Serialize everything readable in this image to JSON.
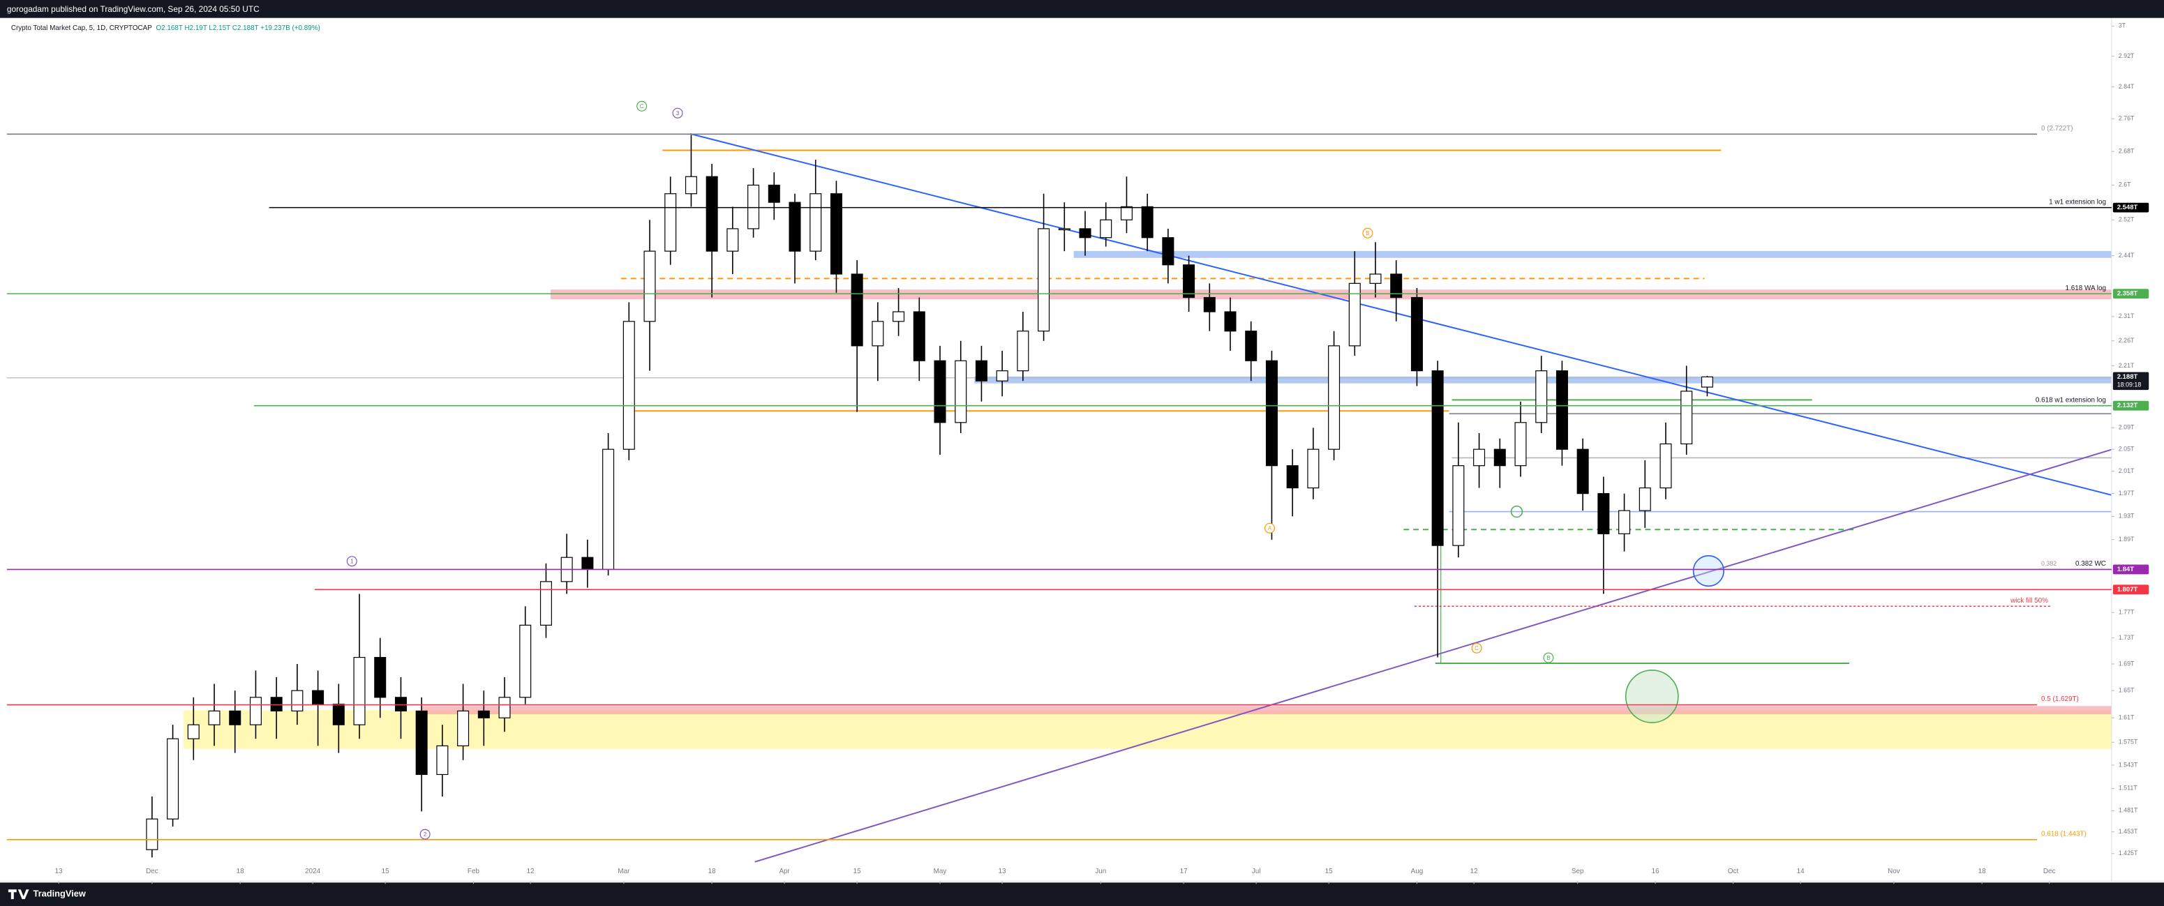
{
  "header": {
    "publisher": "gorogadam published on TradingView.com, Sep 26, 2024 05:50 UTC"
  },
  "footer": {
    "brand": "TradingView"
  },
  "chart_data": {
    "type": "candlestick",
    "title": "Crypto Total Market Cap, 5, 1D, CRYPTOCAP",
    "ohlc_legend": "O2.168T H2.19T L2.15T C2.188T +19.237B (+0.89%)",
    "log_scale": true,
    "up_color": "#ffffff",
    "down_color": "#000000",
    "wick_color": "#000000",
    "x": [
      "2023-12-01",
      "2023-12-05",
      "2023-12-09",
      "2023-12-13",
      "2023-12-17",
      "2023-12-21",
      "2023-12-25",
      "2023-12-29",
      "2024-01-02",
      "2024-01-06",
      "2024-01-10",
      "2024-01-14",
      "2024-01-18",
      "2024-01-22",
      "2024-01-26",
      "2024-01-30",
      "2024-02-03",
      "2024-02-07",
      "2024-02-11",
      "2024-02-15",
      "2024-02-19",
      "2024-02-23",
      "2024-02-27",
      "2024-03-02",
      "2024-03-06",
      "2024-03-10",
      "2024-03-14",
      "2024-03-18",
      "2024-03-22",
      "2024-03-26",
      "2024-03-30",
      "2024-04-03",
      "2024-04-07",
      "2024-04-11",
      "2024-04-15",
      "2024-04-19",
      "2024-04-23",
      "2024-04-27",
      "2024-05-01",
      "2024-05-05",
      "2024-05-09",
      "2024-05-13",
      "2024-05-17",
      "2024-05-21",
      "2024-05-25",
      "2024-05-29",
      "2024-06-02",
      "2024-06-06",
      "2024-06-10",
      "2024-06-14",
      "2024-06-18",
      "2024-06-22",
      "2024-06-26",
      "2024-06-30",
      "2024-07-04",
      "2024-07-08",
      "2024-07-12",
      "2024-07-16",
      "2024-07-20",
      "2024-07-24",
      "2024-07-28",
      "2024-08-01",
      "2024-08-05",
      "2024-08-09",
      "2024-08-13",
      "2024-08-17",
      "2024-08-21",
      "2024-08-25",
      "2024-08-29",
      "2024-09-02",
      "2024-09-06",
      "2024-09-10",
      "2024-09-14",
      "2024-09-18",
      "2024-09-22",
      "2024-09-26"
    ],
    "open": [
      1.43,
      1.47,
      1.58,
      1.6,
      1.62,
      1.6,
      1.64,
      1.62,
      1.65,
      1.63,
      1.6,
      1.7,
      1.64,
      1.62,
      1.53,
      1.57,
      1.62,
      1.61,
      1.64,
      1.75,
      1.82,
      1.86,
      1.84,
      2.05,
      2.3,
      2.45,
      2.58,
      2.62,
      2.45,
      2.5,
      2.6,
      2.56,
      2.45,
      2.58,
      2.4,
      2.25,
      2.3,
      2.32,
      2.22,
      2.1,
      2.22,
      2.18,
      2.2,
      2.28,
      2.5,
      2.5,
      2.48,
      2.52,
      2.55,
      2.48,
      2.42,
      2.35,
      2.32,
      2.28,
      2.22,
      2.02,
      1.98,
      2.05,
      2.25,
      2.38,
      2.4,
      2.35,
      2.2,
      1.88,
      2.02,
      2.05,
      2.02,
      2.1,
      2.2,
      2.05,
      1.97,
      1.9,
      1.94,
      1.98,
      2.06,
      2.168
    ],
    "high": [
      1.5,
      1.6,
      1.64,
      1.66,
      1.65,
      1.68,
      1.67,
      1.69,
      1.68,
      1.66,
      1.8,
      1.73,
      1.67,
      1.64,
      1.6,
      1.66,
      1.65,
      1.67,
      1.78,
      1.85,
      1.9,
      1.89,
      2.08,
      2.34,
      2.52,
      2.62,
      2.72,
      2.65,
      2.55,
      2.64,
      2.63,
      2.58,
      2.66,
      2.61,
      2.43,
      2.34,
      2.37,
      2.35,
      2.25,
      2.26,
      2.25,
      2.24,
      2.32,
      2.58,
      2.56,
      2.54,
      2.56,
      2.62,
      2.58,
      2.5,
      2.44,
      2.38,
      2.35,
      2.3,
      2.24,
      2.05,
      2.09,
      2.28,
      2.45,
      2.47,
      2.43,
      2.37,
      2.22,
      2.1,
      2.08,
      2.07,
      2.14,
      2.23,
      2.22,
      2.07,
      2.0,
      1.97,
      2.03,
      2.1,
      2.21,
      2.19
    ],
    "low": [
      1.42,
      1.46,
      1.55,
      1.57,
      1.56,
      1.58,
      1.58,
      1.6,
      1.57,
      1.56,
      1.58,
      1.61,
      1.58,
      1.48,
      1.5,
      1.55,
      1.57,
      1.59,
      1.63,
      1.73,
      1.8,
      1.81,
      1.83,
      2.03,
      2.2,
      2.42,
      2.55,
      2.35,
      2.4,
      2.48,
      2.52,
      2.38,
      2.43,
      2.36,
      2.12,
      2.18,
      2.27,
      2.18,
      2.04,
      2.08,
      2.14,
      2.15,
      2.18,
      2.26,
      2.45,
      2.44,
      2.46,
      2.49,
      2.45,
      2.38,
      2.32,
      2.28,
      2.24,
      2.18,
      1.89,
      1.93,
      1.96,
      2.03,
      2.23,
      2.35,
      2.3,
      2.17,
      1.7,
      1.86,
      1.98,
      1.98,
      2.0,
      2.08,
      2.02,
      1.94,
      1.8,
      1.87,
      1.91,
      1.96,
      2.04,
      2.15
    ],
    "close": [
      1.47,
      1.58,
      1.6,
      1.62,
      1.6,
      1.64,
      1.62,
      1.65,
      1.63,
      1.6,
      1.7,
      1.64,
      1.62,
      1.53,
      1.57,
      1.62,
      1.61,
      1.64,
      1.75,
      1.82,
      1.86,
      1.84,
      2.05,
      2.3,
      2.45,
      2.58,
      2.62,
      2.45,
      2.5,
      2.6,
      2.56,
      2.45,
      2.58,
      2.4,
      2.25,
      2.3,
      2.32,
      2.22,
      2.1,
      2.22,
      2.18,
      2.2,
      2.28,
      2.5,
      2.5,
      2.48,
      2.52,
      2.55,
      2.48,
      2.42,
      2.35,
      2.32,
      2.28,
      2.22,
      2.02,
      1.98,
      2.05,
      2.25,
      2.38,
      2.4,
      2.35,
      2.2,
      1.88,
      2.02,
      2.05,
      2.02,
      2.1,
      2.2,
      2.05,
      1.97,
      1.9,
      1.94,
      1.98,
      2.06,
      2.16,
      2.188
    ],
    "last_value_label": "2.188T",
    "countdown": "18:09:18",
    "xlim": [
      "2023-11-03",
      "2024-12-13"
    ],
    "ylim": [
      1.39,
      3.022
    ],
    "yticks": [
      {
        "value": 3,
        "label": "3T"
      },
      {
        "value": 2.92,
        "label": "2.92T"
      },
      {
        "value": 2.84,
        "label": "2.84T"
      },
      {
        "value": 2.76,
        "label": "2.76T"
      },
      {
        "value": 2.68,
        "label": "2.68T"
      },
      {
        "value": 2.6,
        "label": "2.6T"
      },
      {
        "value": 2.52,
        "label": "2.52T"
      },
      {
        "value": 2.44,
        "label": "2.44T"
      },
      {
        "value": 2.31,
        "label": "2.31T"
      },
      {
        "value": 2.26,
        "label": "2.26T"
      },
      {
        "value": 2.21,
        "label": "2.21T"
      },
      {
        "value": 2.09,
        "label": "2.09T"
      },
      {
        "value": 2.05,
        "label": "2.05T"
      },
      {
        "value": 2.01,
        "label": "2.01T"
      },
      {
        "value": 1.97,
        "label": "1.97T"
      },
      {
        "value": 1.93,
        "label": "1.93T"
      },
      {
        "value": 1.89,
        "label": "1.89T"
      },
      {
        "value": 1.77,
        "label": "1.77T"
      },
      {
        "value": 1.73,
        "label": "1.73T"
      },
      {
        "value": 1.69,
        "label": "1.69T"
      },
      {
        "value": 1.65,
        "label": "1.65T"
      },
      {
        "value": 1.61,
        "label": "1.61T"
      },
      {
        "value": 1.575,
        "label": "1.575T"
      },
      {
        "value": 1.543,
        "label": "1.543T"
      },
      {
        "value": 1.511,
        "label": "1.511T"
      },
      {
        "value": 1.481,
        "label": "1.481T"
      },
      {
        "value": 1.453,
        "label": "1.453T"
      },
      {
        "value": 1.425,
        "label": "1.425T"
      }
    ],
    "xticks": [
      {
        "value": "2023-11-13",
        "label": "13"
      },
      {
        "value": "2023-12-01",
        "label": "Dec"
      },
      {
        "value": "2023-12-18",
        "label": "18"
      },
      {
        "value": "2024-01-01",
        "label": "2024"
      },
      {
        "value": "2024-01-15",
        "label": "15"
      },
      {
        "value": "2024-02-01",
        "label": "Feb"
      },
      {
        "value": "2024-02-12",
        "label": "12"
      },
      {
        "value": "2024-03-01",
        "label": "Mar"
      },
      {
        "value": "2024-03-18",
        "label": "18"
      },
      {
        "value": "2024-04-01",
        "label": "Apr"
      },
      {
        "value": "2024-04-15",
        "label": "15"
      },
      {
        "value": "2024-05-01",
        "label": "May"
      },
      {
        "value": "2024-05-13",
        "label": "13"
      },
      {
        "value": "2024-06-01",
        "label": "Jun"
      },
      {
        "value": "2024-06-17",
        "label": "17"
      },
      {
        "value": "2024-07-01",
        "label": "Jul"
      },
      {
        "value": "2024-07-15",
        "label": "15"
      },
      {
        "value": "2024-08-01",
        "label": "Aug"
      },
      {
        "value": "2024-08-12",
        "label": "12"
      },
      {
        "value": "2024-09-01",
        "label": "Sep"
      },
      {
        "value": "2024-09-16",
        "label": "16"
      },
      {
        "value": "2024-10-01",
        "label": "Oct"
      },
      {
        "value": "2024-10-14",
        "label": "14"
      },
      {
        "value": "2024-11-01",
        "label": "Nov"
      },
      {
        "value": "2024-11-18",
        "label": "18"
      },
      {
        "value": "2024-12-01",
        "label": "Dec"
      }
    ],
    "levels": [
      {
        "text": "0 (2.722T)",
        "value": 2.722,
        "color": "#787b86"
      },
      {
        "text": "1 w1 extension log",
        "value": 2.548,
        "value_label": "2.548T",
        "color": "#000000"
      },
      {
        "text": "1.618 WA log",
        "value": 2.358,
        "value_label": "2.358T",
        "color": "#4caf50"
      },
      {
        "text": "0.618 w1 extension log",
        "value": 2.132,
        "value_label": "2.132T",
        "color": "#4caf50"
      },
      {
        "fib": "0.382",
        "text": "0.382 WC",
        "value": 1.84,
        "value_label": "1.84T",
        "color": "#9c27b0"
      },
      {
        "value": 1.807,
        "value_label": "1.807T",
        "color": "#f23645"
      },
      {
        "text": "wick fill 50%",
        "value": 1.78,
        "color": "#f23645"
      },
      {
        "text": "0.5 (1.629T)",
        "value": 1.629,
        "color": "#f23645"
      },
      {
        "text": "0.618 (1.443T)",
        "value": 1.443,
        "color": "#ff9800"
      }
    ],
    "waves": [
      {
        "text": "C",
        "color": "#4caf50"
      },
      {
        "text": "3",
        "color": "#7e57c2"
      },
      {
        "text": "B",
        "color": "#ff9800"
      },
      {
        "text": "A",
        "color": "#ff9800"
      },
      {
        "text": "1",
        "color": "#7e57c2"
      },
      {
        "text": "2",
        "color": "#7e57c2"
      },
      {
        "text": "C",
        "color": "#ff9800"
      },
      {
        "text": "B",
        "color": "#4caf50"
      }
    ]
  }
}
